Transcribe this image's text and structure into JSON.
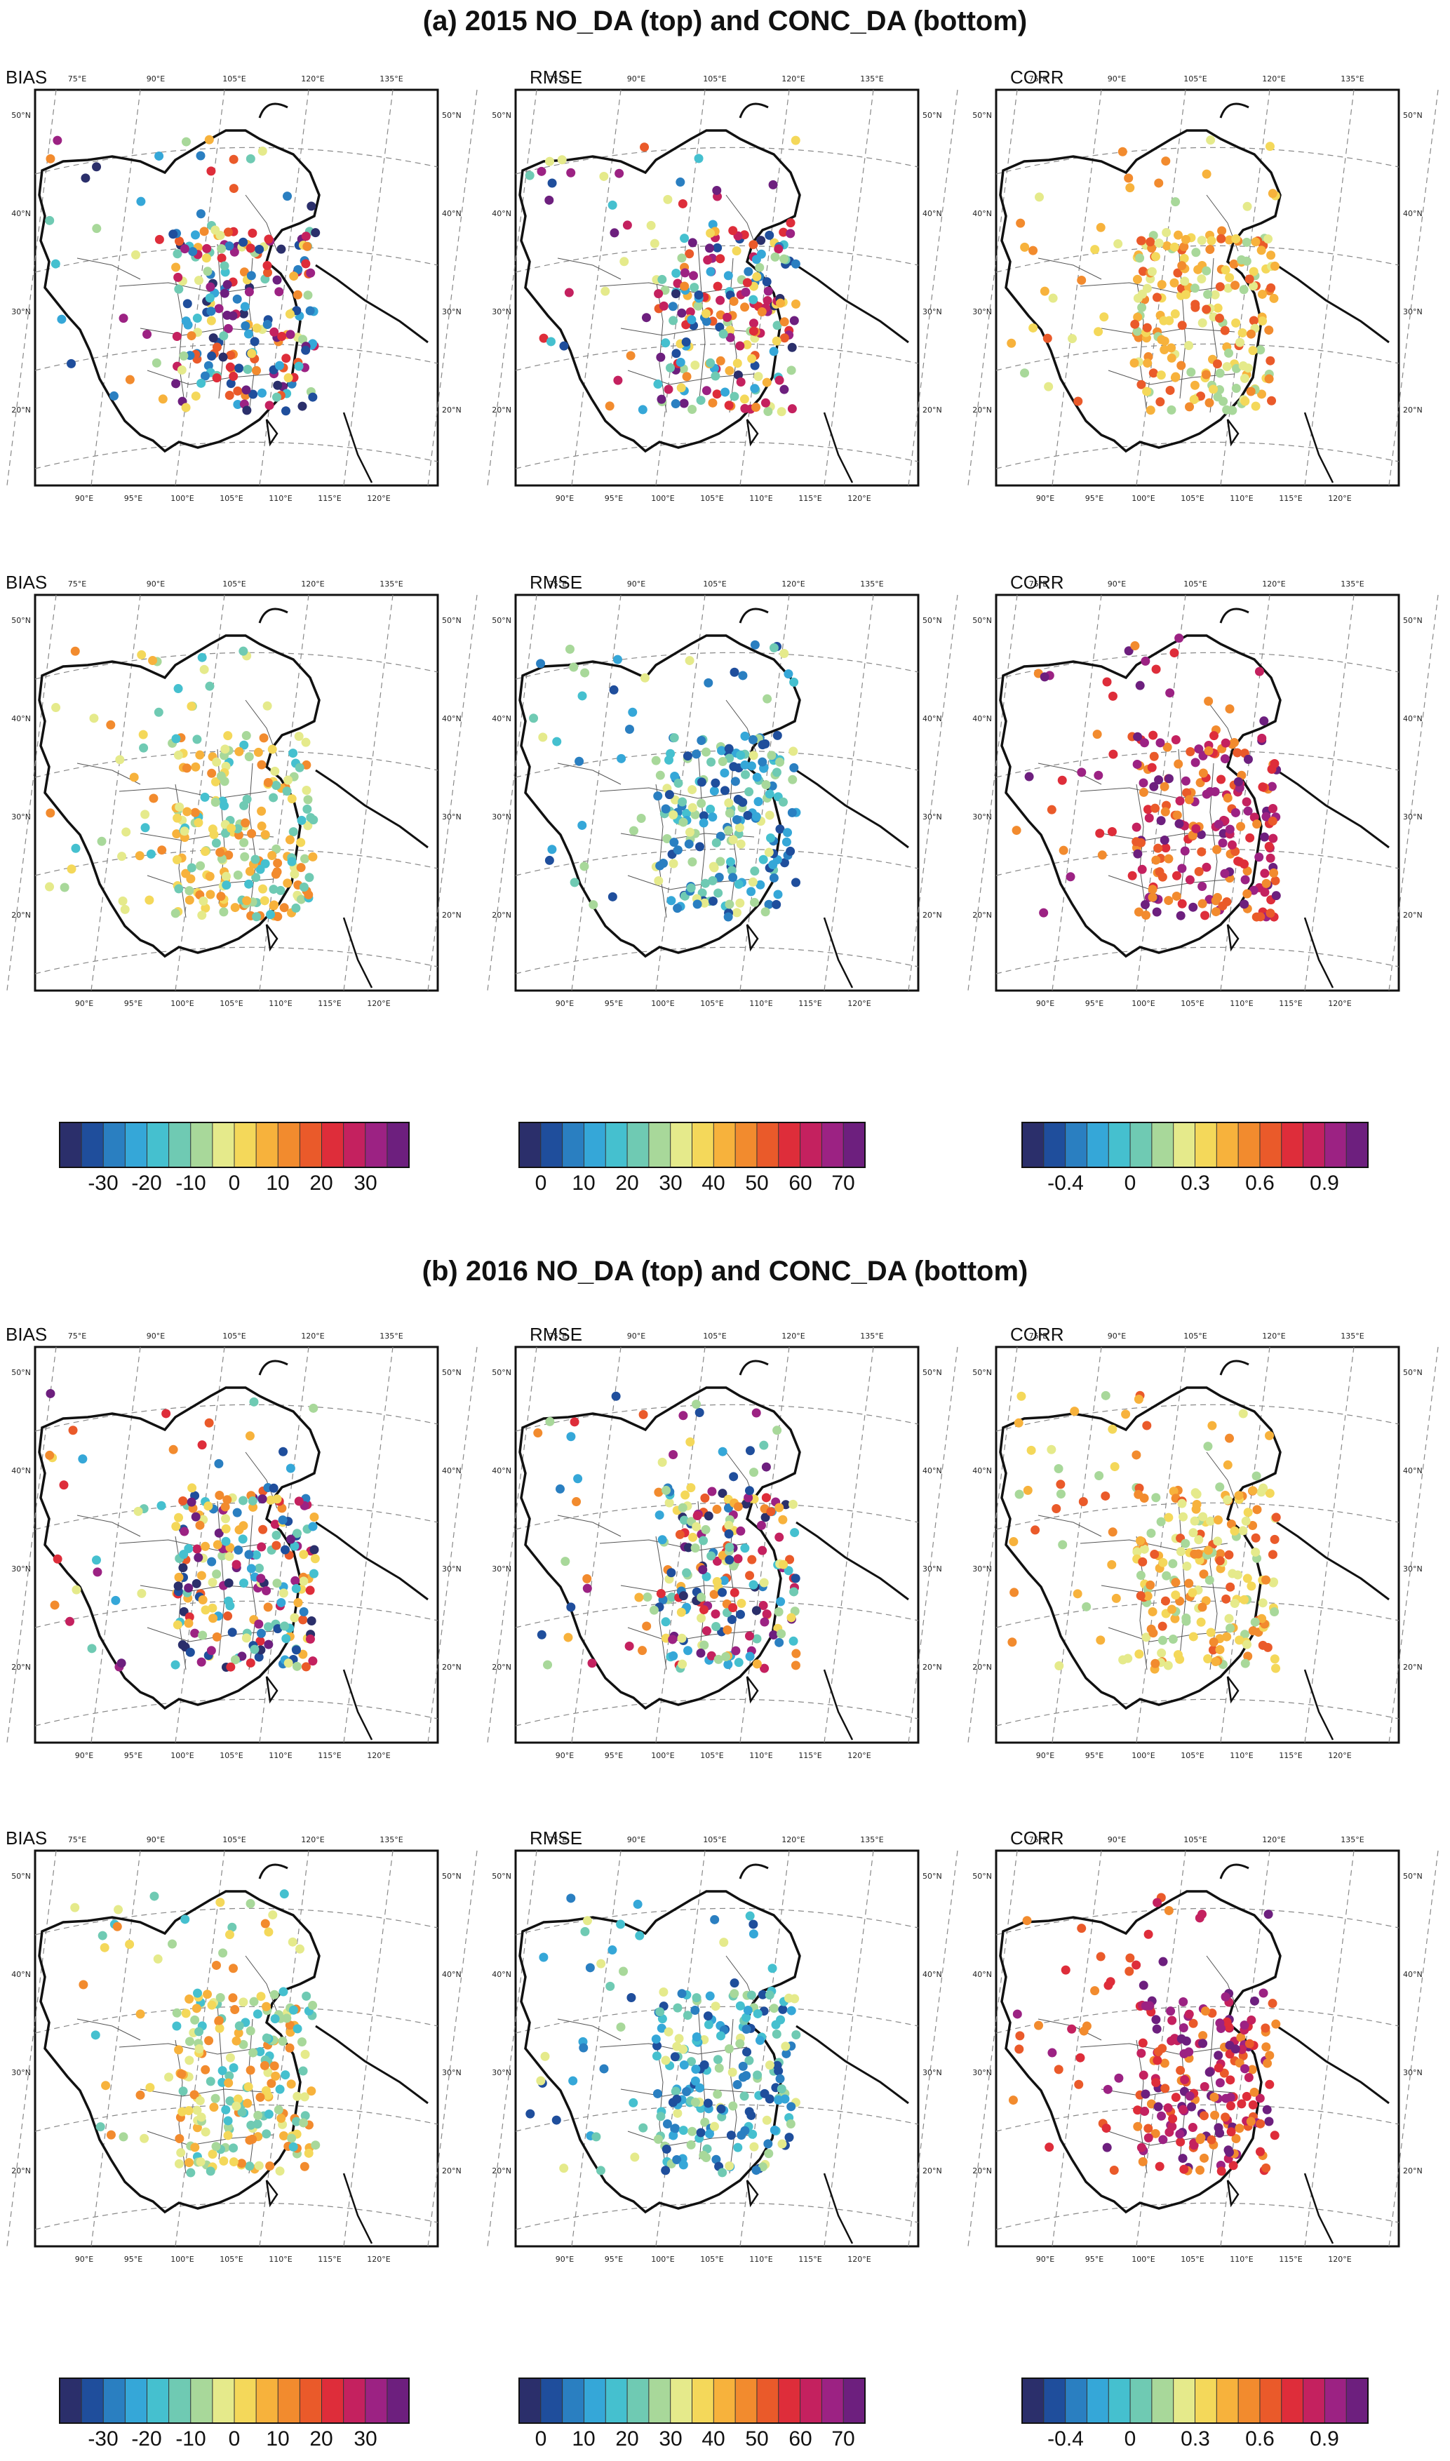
{
  "sections": [
    {
      "title": "(a) 2015 NO_DA (top) and  CONC_DA (bottom)",
      "rows": [
        {
          "panels": [
            {
              "label": "BIAS",
              "metric": "bias"
            },
            {
              "label": "RMSE",
              "metric": "rmse"
            },
            {
              "label": "CORR",
              "metric": "corr"
            }
          ]
        },
        {
          "panels": [
            {
              "label": "BIAS",
              "metric": "bias"
            },
            {
              "label": "RMSE",
              "metric": "rmse"
            },
            {
              "label": "CORR",
              "metric": "corr"
            }
          ]
        }
      ],
      "colorbars": [
        {
          "metric": "bias",
          "ticks": [
            "-30",
            "-20",
            "-10",
            "0",
            "10",
            "20",
            "30"
          ]
        },
        {
          "metric": "rmse",
          "ticks": [
            "0",
            "10",
            "20",
            "30",
            "40",
            "50",
            "60",
            "70"
          ]
        },
        {
          "metric": "corr",
          "ticks": [
            "-0.4",
            "0",
            "0.3",
            "0.6",
            "0.9"
          ]
        }
      ]
    },
    {
      "title": "(b) 2016 NO_DA (top) and  CONC_DA (bottom)",
      "rows": [
        {
          "panels": [
            {
              "label": "BIAS",
              "metric": "bias"
            },
            {
              "label": "RMSE",
              "metric": "rmse"
            },
            {
              "label": "CORR",
              "metric": "corr"
            }
          ]
        },
        {
          "panels": [
            {
              "label": "BIAS",
              "metric": "bias"
            },
            {
              "label": "RMSE",
              "metric": "rmse"
            },
            {
              "label": "CORR",
              "metric": "corr"
            }
          ]
        }
      ],
      "colorbars": [
        {
          "metric": "bias",
          "ticks": [
            "-30",
            "-20",
            "-10",
            "0",
            "10",
            "20",
            "30"
          ]
        },
        {
          "metric": "rmse",
          "ticks": [
            "0",
            "10",
            "20",
            "30",
            "40",
            "50",
            "60",
            "70"
          ]
        },
        {
          "metric": "corr",
          "ticks": [
            "-0.4",
            "0",
            "0.3",
            "0.6",
            "0.9"
          ]
        }
      ]
    }
  ],
  "map_axes": {
    "top_lon_labels": [
      "75°E",
      "90°E",
      "105°E",
      "120°E",
      "135°E"
    ],
    "bottom_lon_labels": [
      "90°E",
      "95°E",
      "100°E",
      "105°E",
      "110°E",
      "115°E",
      "120°E"
    ],
    "lat_labels": [
      "50°N",
      "40°N",
      "30°N",
      "20°N"
    ]
  },
  "colormap": [
    "#2b2f6b",
    "#1f4e9c",
    "#2a7fc1",
    "#35a7d8",
    "#45c0cf",
    "#6fcab3",
    "#a8d89a",
    "#e5ea8b",
    "#f4d85a",
    "#f7b23c",
    "#f28b2e",
    "#ea5a2a",
    "#de2d3a",
    "#c4215f",
    "#9c2283",
    "#6d1f7e"
  ]
}
